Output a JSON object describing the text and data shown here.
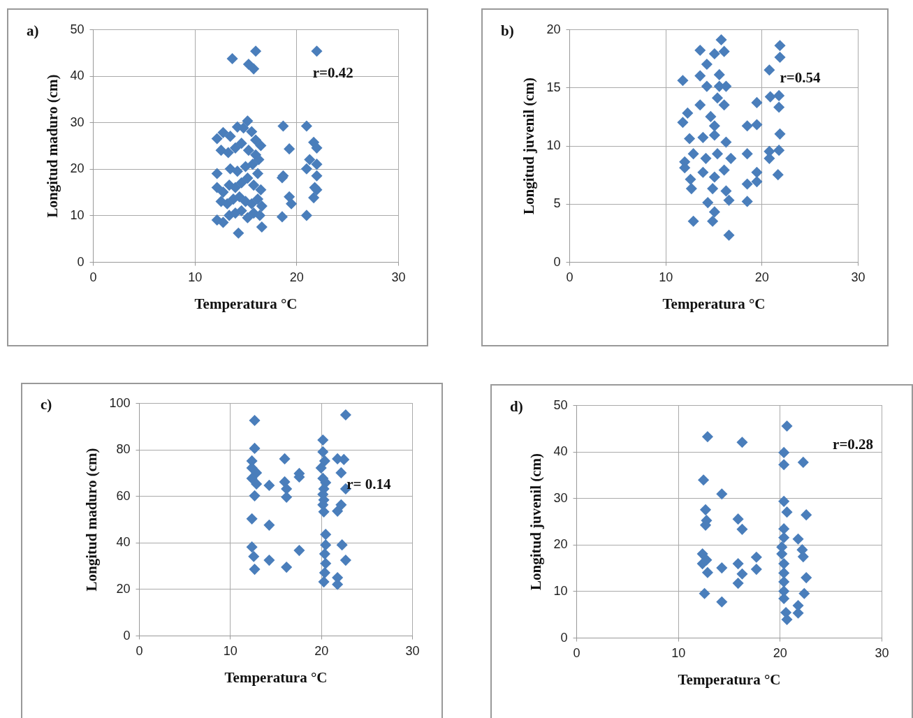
{
  "chart_data": [
    {
      "type": "scatter",
      "title": "a)",
      "xlabel": "Temperatura °C",
      "ylabel": "Longitud maduro (cm)",
      "annotations": [
        "r=0.42"
      ],
      "marker": "diamond",
      "grid": true,
      "color": "#4a7ebb",
      "xlim": [
        0,
        30
      ],
      "xticks": [
        0,
        10,
        20,
        30
      ],
      "ylim": [
        0,
        50
      ],
      "yticks": [
        0,
        10,
        20,
        30,
        40,
        50
      ],
      "x": [
        13.7,
        16,
        15.3,
        15.8,
        22,
        12.2,
        12.8,
        13.5,
        14.2,
        14.8,
        15.2,
        15.6,
        16,
        16.5,
        12.6,
        13.3,
        14,
        14.6,
        15.3,
        16,
        16.3,
        12.2,
        13.5,
        14.2,
        15,
        15.7,
        16.2,
        12.2,
        12.8,
        13.4,
        14,
        14.6,
        15.2,
        15.8,
        16.5,
        12.6,
        13.2,
        13.8,
        14.4,
        15,
        15.6,
        16.2,
        16.6,
        12.2,
        12.8,
        13.4,
        14,
        14.6,
        15.2,
        15.8,
        16.4,
        14.3,
        16.6,
        18.7,
        21,
        19.3,
        21.7,
        22,
        21.3,
        22,
        21,
        18.7,
        18.6,
        22,
        21.8,
        22,
        19.3,
        19.5,
        21.7,
        18.6,
        21
      ],
      "values": [
        43.7,
        45.3,
        42.5,
        41.5,
        45.3,
        26.5,
        27.8,
        27,
        29,
        28.8,
        30.3,
        28,
        26.2,
        25,
        24,
        23.5,
        24.5,
        25.5,
        24,
        23,
        22,
        19,
        20,
        19.5,
        20.5,
        21,
        19,
        16,
        15,
        16.5,
        16,
        17,
        18,
        16.5,
        15.5,
        13,
        12.5,
        13.5,
        14,
        13,
        12.5,
        13.5,
        12,
        9,
        8.5,
        10,
        10.5,
        11,
        9.5,
        10.5,
        10,
        6.2,
        7.5,
        29.2,
        29.2,
        24.3,
        25.7,
        24.5,
        22,
        21,
        20,
        18.5,
        18.1,
        18.5,
        16,
        15.5,
        14,
        12.5,
        13.8,
        9.7,
        10
      ]
    },
    {
      "type": "scatter",
      "title": "b)",
      "xlabel": "Temperatura °C",
      "ylabel": "Longitud juvenil (cm)",
      "annotations": [
        "r=0.54"
      ],
      "marker": "diamond",
      "grid": true,
      "color": "#4a7ebb",
      "xlim": [
        0,
        30
      ],
      "xticks": [
        0,
        10,
        20,
        30
      ],
      "ylim": [
        0,
        20
      ],
      "yticks": [
        0,
        5,
        10,
        15,
        20
      ],
      "x": [
        15.8,
        13.6,
        15.1,
        16.1,
        14.3,
        11.8,
        13.6,
        15.6,
        14.3,
        15.6,
        16.3,
        15.4,
        16.1,
        13.6,
        12.3,
        11.8,
        14.7,
        15.1,
        12.5,
        13.9,
        15.1,
        16.3,
        12,
        12.9,
        14.2,
        15.4,
        16.8,
        12,
        12.6,
        13.9,
        15.1,
        16.1,
        12.7,
        14.9,
        16.3,
        16.6,
        14.4,
        15.1,
        14.9,
        12.9,
        16.6,
        21.9,
        21.9,
        20.8,
        20.9,
        21.8,
        21.8,
        19.5,
        18.5,
        19.5,
        21.9,
        18.5,
        20.8,
        21.8,
        20.8,
        19.5,
        19.5,
        18.5,
        21.7,
        18.5
      ],
      "values": [
        19.1,
        18.2,
        17.9,
        18.1,
        17,
        15.6,
        16,
        16.1,
        15.1,
        15.1,
        15.1,
        14.1,
        13.5,
        13.5,
        12.8,
        12,
        12.5,
        11.7,
        10.6,
        10.7,
        10.9,
        10.3,
        8.6,
        9.3,
        8.9,
        9.3,
        8.9,
        8.1,
        7.1,
        7.7,
        7.3,
        7.9,
        6.3,
        6.3,
        6.1,
        5.3,
        5.1,
        4.3,
        3.5,
        3.5,
        2.3,
        18.6,
        17.6,
        16.5,
        14.2,
        14.3,
        13.3,
        13.7,
        11.7,
        11.8,
        11,
        9.3,
        9.5,
        9.6,
        8.9,
        7.7,
        6.9,
        6.7,
        7.5,
        5.2
      ]
    },
    {
      "type": "scatter",
      "title": "c)",
      "xlabel": "Temperatura °C",
      "ylabel": "Longitud maduro (cm)",
      "annotations": [
        "r= 0.14"
      ],
      "marker": "diamond",
      "grid": true,
      "color": "#4a7ebb",
      "xlim": [
        0,
        30
      ],
      "xticks": [
        0,
        10,
        20,
        30
      ],
      "ylim": [
        0,
        100
      ],
      "yticks": [
        0,
        20,
        40,
        60,
        80,
        100
      ],
      "x": [
        12.7,
        22.7,
        12.7,
        12.4,
        12.4,
        12.9,
        12.4,
        12.9,
        14.3,
        12.7,
        16,
        17.6,
        17.6,
        16,
        16.2,
        16.2,
        20.2,
        20.2,
        20.4,
        21.8,
        22.5,
        22.2,
        20,
        20.2,
        20.5,
        20.3,
        20.2,
        20.3,
        20.2,
        20.3,
        22.7,
        22.2,
        21.8,
        12.4,
        14.3,
        20.5,
        20.5,
        20.4,
        20.5,
        20.4,
        20.3,
        22.3,
        22.7,
        21.8,
        21.8,
        12.4,
        12.6,
        12.7,
        14.3,
        16.2,
        17.6
      ],
      "values": [
        92.5,
        94.9,
        80.5,
        75.1,
        72.1,
        70,
        67.6,
        65.2,
        64.6,
        60.1,
        76,
        69.7,
        68.2,
        66.1,
        63.1,
        59.5,
        84.1,
        79,
        75.1,
        76,
        75.7,
        70,
        72.1,
        67.6,
        65.8,
        63.1,
        60.7,
        58.3,
        56.2,
        53.2,
        63.1,
        56.2,
        53.5,
        50.2,
        47.5,
        43.5,
        39,
        35.1,
        31,
        27,
        23.1,
        39,
        32.4,
        24.9,
        22,
        38.1,
        34,
        28.5,
        32.4,
        29.4,
        36.6
      ]
    },
    {
      "type": "scatter",
      "title": "d)",
      "xlabel": "Temperatura °C",
      "ylabel": "Longitud juvenil (cm)",
      "annotations": [
        "r=0.28"
      ],
      "marker": "diamond",
      "grid": true,
      "color": "#4a7ebb",
      "xlim": [
        0,
        30
      ],
      "xticks": [
        0,
        10,
        20,
        30
      ],
      "ylim": [
        0,
        50
      ],
      "yticks": [
        0,
        10,
        20,
        30,
        40,
        50
      ],
      "x": [
        12.9,
        16.3,
        20.7,
        20.4,
        20.4,
        22.3,
        12.5,
        14.3,
        12.7,
        12.8,
        12.7,
        15.9,
        16.3,
        20.4,
        20.7,
        22.6,
        20.4,
        20.4,
        20.2,
        20.2,
        20.4,
        20.4,
        20.4,
        20.4,
        20.4,
        20.6,
        20.7,
        21.8,
        22.2,
        22.3,
        22.6,
        22.4,
        21.8,
        21.8,
        12.4,
        12.8,
        12.4,
        12.9,
        14.3,
        15.9,
        16.3,
        15.9,
        17.7,
        17.7,
        12.6,
        14.3
      ],
      "values": [
        43.2,
        42,
        45.5,
        39.8,
        37.2,
        37.7,
        33.9,
        30.9,
        27.5,
        25.2,
        24.2,
        25.5,
        23.3,
        29.3,
        27,
        26.4,
        23.4,
        21.5,
        19.5,
        18,
        15.9,
        13.9,
        12,
        10,
        8.4,
        5.4,
        3.9,
        21.2,
        18.9,
        17.4,
        12.9,
        9.5,
        6.9,
        5.3,
        18,
        16.7,
        15.9,
        14,
        15,
        15.9,
        13.7,
        11.7,
        17.3,
        14.7,
        9.5,
        7.7
      ]
    }
  ]
}
